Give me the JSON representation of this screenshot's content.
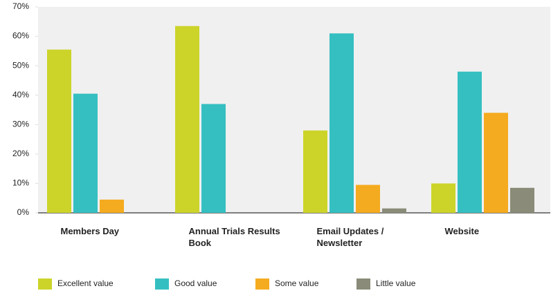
{
  "chart_data": {
    "type": "bar",
    "categories": [
      "Members Day",
      "Annual Trials Results Book",
      "Email Updates / Newsletter",
      "Website"
    ],
    "series": [
      {
        "name": "Excellent value",
        "color": "#ccd42a",
        "values": [
          55.5,
          63.5,
          28,
          10
        ]
      },
      {
        "name": "Good value",
        "color": "#35bfc1",
        "values": [
          40.5,
          37,
          61,
          48
        ]
      },
      {
        "name": "Some value",
        "color": "#f5ab1f",
        "values": [
          4.5,
          0,
          9.5,
          34
        ]
      },
      {
        "name": "Little value",
        "color": "#8a8b78",
        "values": [
          0,
          0,
          1.5,
          8.5
        ]
      }
    ],
    "ylim": [
      0,
      70
    ],
    "yticks": [
      {
        "value": 0,
        "label": "0%"
      },
      {
        "value": 10,
        "label": "10%"
      },
      {
        "value": 20,
        "label": "20%"
      },
      {
        "value": 30,
        "label": "30%"
      },
      {
        "value": 40,
        "label": "40%"
      },
      {
        "value": 50,
        "label": "50%"
      },
      {
        "value": 60,
        "label": "60%"
      },
      {
        "value": 70,
        "label": "70%"
      }
    ],
    "legend": "bottom-left"
  }
}
